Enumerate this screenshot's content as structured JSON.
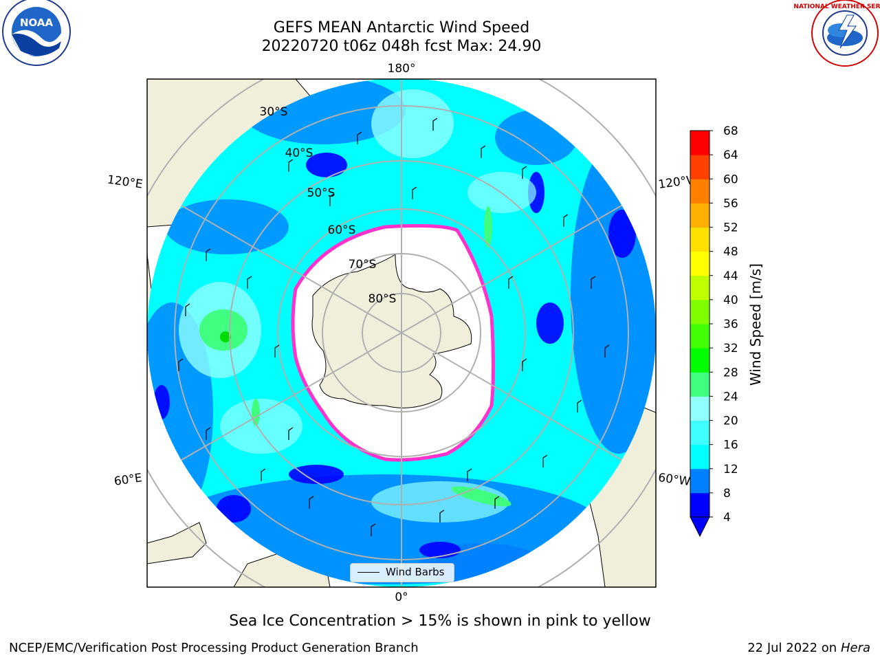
{
  "title": {
    "line1": "GEFS MEAN Antarctic Wind Speed",
    "line2": "20220720 t06z 048h fcst   Max: 24.90"
  },
  "map": {
    "projection": "south-polar-stereographic",
    "longitude_labels": {
      "top": "180°",
      "bottom": "0°",
      "upper_left": "120°E",
      "upper_right": "120°W",
      "lower_left": "60°E",
      "lower_right": "60°W"
    },
    "latitude_labels": [
      "30°S",
      "40°S",
      "50°S",
      "60°S",
      "70°S",
      "80°S"
    ],
    "colors": {
      "ocean_base": "#00ffff",
      "land": "#efefdb",
      "sea_ice_edge": "#ff33cc",
      "gridline": "#b0b0b0"
    }
  },
  "legend": {
    "wind_barbs_label": "Wind Barbs"
  },
  "colorbar": {
    "label": "Wind Speed [m/s]",
    "ticks": [
      "4",
      "8",
      "12",
      "16",
      "20",
      "24",
      "28",
      "32",
      "36",
      "40",
      "44",
      "48",
      "52",
      "56",
      "60",
      "64",
      "68"
    ],
    "colors": [
      "#0000ff",
      "#0080ff",
      "#00ffff",
      "#40ffff",
      "#90ffff",
      "#40ff80",
      "#00ff00",
      "#40ff00",
      "#80ff00",
      "#c0ff00",
      "#ffff00",
      "#ffe000",
      "#ffb000",
      "#ff8000",
      "#ff4000",
      "#ff0000"
    ]
  },
  "caption": "Sea Ice Concentration > 15% is shown in pink to yellow",
  "footer": {
    "left": "NCEP/EMC/Verification Post Processing Product Generation Branch",
    "right_date": "22 Jul 2022 on ",
    "right_host": "Hera"
  },
  "logos": {
    "left": "NOAA",
    "right": "NATIONAL WEATHER SERVICE"
  }
}
